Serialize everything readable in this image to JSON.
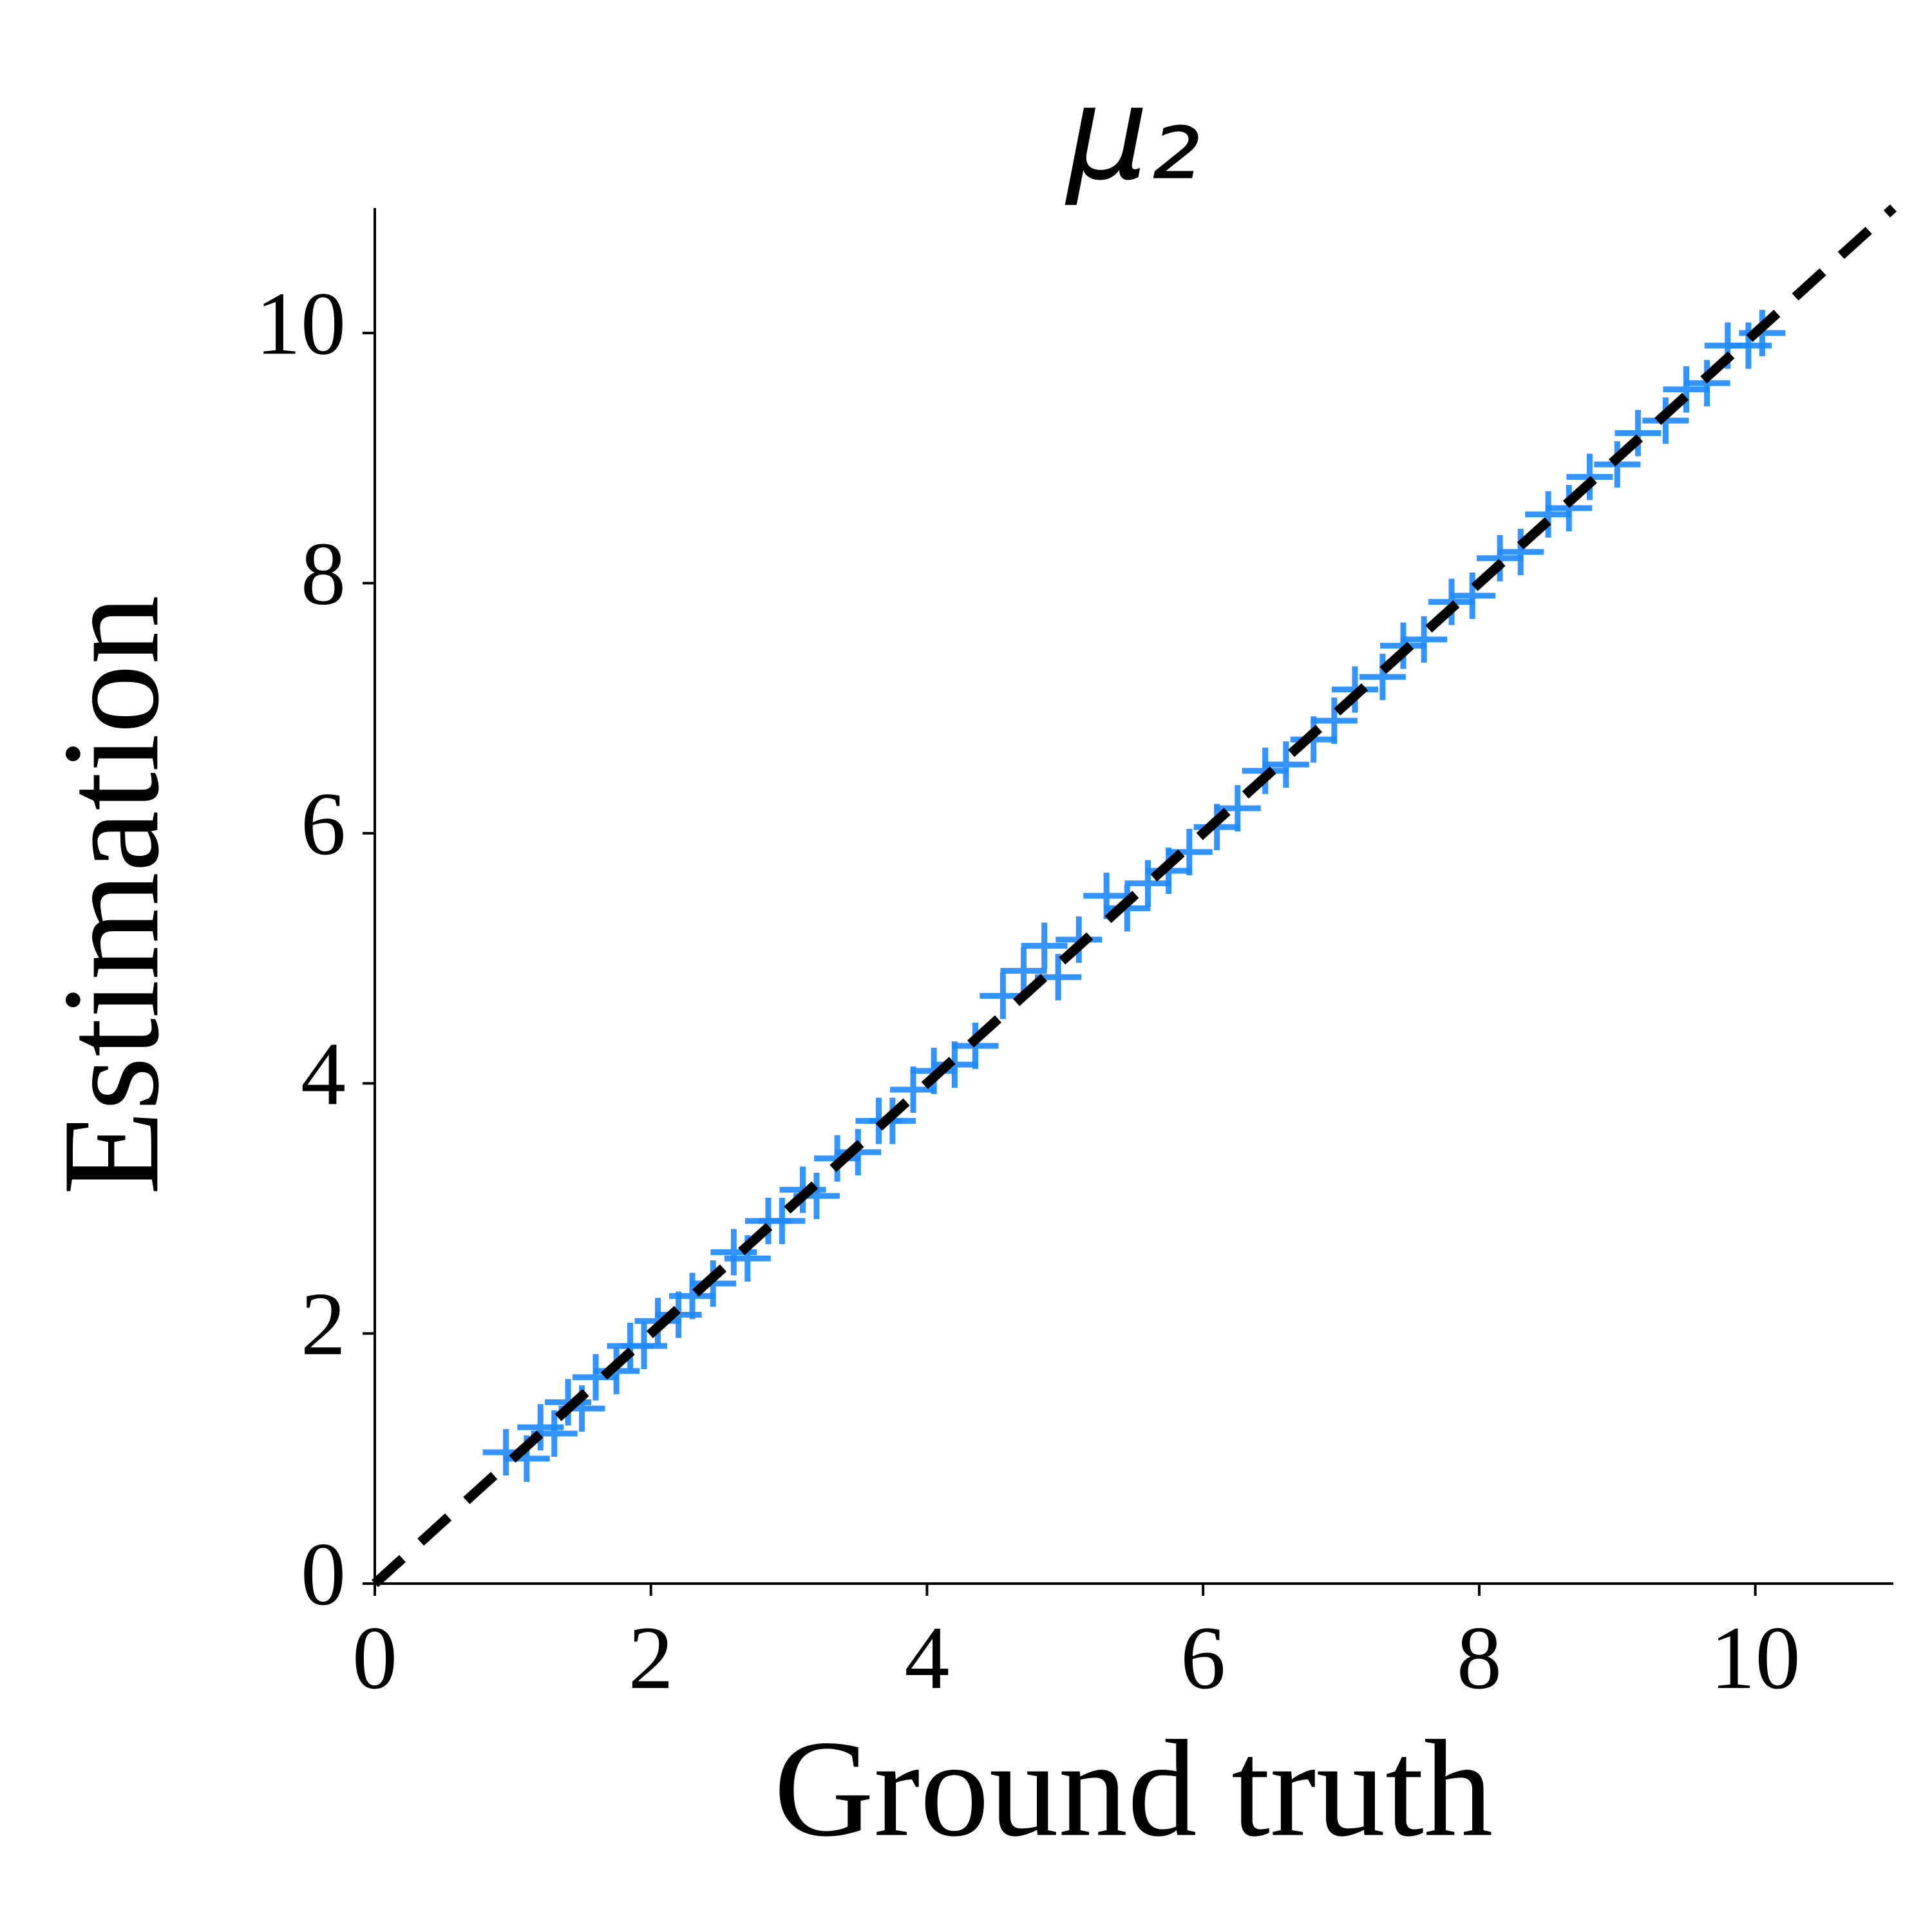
{
  "chart_data": {
    "type": "scatter",
    "title": "μ₂",
    "xlabel": "Ground truth",
    "ylabel": "Estimation",
    "xlim": [
      0,
      11
    ],
    "ylim": [
      0,
      11
    ],
    "xticks": [
      0,
      2,
      4,
      6,
      8,
      10
    ],
    "yticks": [
      0,
      2,
      4,
      6,
      8,
      10
    ],
    "color": "#1e88ff",
    "marker": "plus",
    "x": [
      0.95,
      1.1,
      1.2,
      1.3,
      1.4,
      1.5,
      1.6,
      1.75,
      1.85,
      1.95,
      2.05,
      2.2,
      2.3,
      2.45,
      2.6,
      2.7,
      2.85,
      2.95,
      3.1,
      3.2,
      3.35,
      3.5,
      3.65,
      3.75,
      3.9,
      4.05,
      4.2,
      4.35,
      4.55,
      4.7,
      4.85,
      4.95,
      5.1,
      5.3,
      5.45,
      5.6,
      5.75,
      5.9,
      6.1,
      6.25,
      6.45,
      6.6,
      6.8,
      6.95,
      7.1,
      7.3,
      7.45,
      7.6,
      7.8,
      7.95,
      8.15,
      8.3,
      8.5,
      8.65,
      8.8,
      9.0,
      9.15,
      9.35,
      9.5,
      9.65,
      9.8,
      9.95,
      10.05
    ],
    "values": [
      1.05,
      1.0,
      1.25,
      1.2,
      1.45,
      1.4,
      1.65,
      1.7,
      1.9,
      1.9,
      2.1,
      2.15,
      2.3,
      2.4,
      2.65,
      2.6,
      2.9,
      2.9,
      3.15,
      3.1,
      3.4,
      3.45,
      3.7,
      3.7,
      3.95,
      4.1,
      4.15,
      4.3,
      4.7,
      4.9,
      5.1,
      4.85,
      5.15,
      5.5,
      5.4,
      5.6,
      5.7,
      5.85,
      6.05,
      6.2,
      6.5,
      6.55,
      6.75,
      6.9,
      7.15,
      7.25,
      7.5,
      7.55,
      7.85,
      7.9,
      8.2,
      8.25,
      8.55,
      8.6,
      8.85,
      8.95,
      9.2,
      9.3,
      9.55,
      9.6,
      9.9,
      9.9,
      10.0
    ],
    "diagonal": {
      "x": [
        0,
        11
      ],
      "y": [
        0,
        11
      ],
      "color": "#000000",
      "dashed": true
    }
  }
}
